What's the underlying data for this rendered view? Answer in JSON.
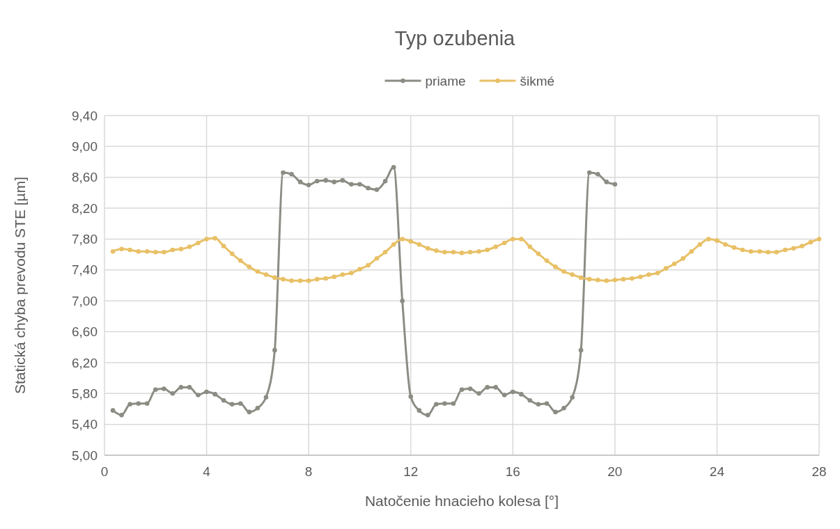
{
  "chart_data": {
    "type": "line",
    "title": "Typ ozubenia",
    "xlabel": "Natočenie hnacieho kolesa [°]",
    "ylabel": "Statická chyba prevodu STE [µm]",
    "xlim": [
      0,
      28
    ],
    "xticks": [
      0,
      4,
      8,
      12,
      16,
      20,
      24,
      28
    ],
    "ylim": [
      5,
      9.4
    ],
    "yticks": [
      {
        "value": 5,
        "label": "5,00"
      },
      {
        "value": 5.4,
        "label": "5,40"
      },
      {
        "value": 5.8,
        "label": "5,80"
      },
      {
        "value": 6.2,
        "label": "6,20"
      },
      {
        "value": 6.6,
        "label": "6,60"
      },
      {
        "value": 7,
        "label": "7,00"
      },
      {
        "value": 7.4,
        "label": "7,40"
      },
      {
        "value": 7.8,
        "label": "7,80"
      },
      {
        "value": 8.2,
        "label": "8,20"
      },
      {
        "value": 8.6,
        "label": "8,60"
      },
      {
        "value": 9,
        "label": "9,00"
      },
      {
        "value": 9.4,
        "label": "9,40"
      }
    ],
    "grid": true,
    "legend": "top",
    "marker": "circle",
    "line_style": "solid",
    "series": [
      {
        "name": "priame",
        "color": "#8c8c84",
        "x": [
          0.33,
          0.67,
          1,
          1.33,
          1.67,
          2,
          2.33,
          2.67,
          3,
          3.33,
          3.67,
          4,
          4.33,
          4.67,
          5,
          5.33,
          5.67,
          6,
          6.33,
          6.67,
          7,
          7.33,
          7.67,
          8,
          8.33,
          8.67,
          9,
          9.33,
          9.67,
          10,
          10.33,
          10.67,
          11,
          11.33,
          11.67,
          12,
          12.33,
          12.67,
          13,
          13.33,
          13.67,
          14,
          14.33,
          14.67,
          15,
          15.33,
          15.67,
          16,
          16.33,
          16.67,
          17,
          17.33,
          17.67,
          18,
          18.33,
          18.67,
          19,
          19.33,
          19.67,
          20
        ],
        "values": [
          5.58,
          5.52,
          5.66,
          5.67,
          5.67,
          5.85,
          5.86,
          5.8,
          5.88,
          5.88,
          5.78,
          5.82,
          5.79,
          5.71,
          5.66,
          5.67,
          5.56,
          5.61,
          5.75,
          6.36,
          8.66,
          8.64,
          8.54,
          8.5,
          8.55,
          8.56,
          8.54,
          8.56,
          8.51,
          8.51,
          8.46,
          8.44,
          8.55,
          8.73,
          7,
          5.76,
          5.58,
          5.52,
          5.66,
          5.67,
          5.67,
          5.85,
          5.86,
          5.8,
          5.88,
          5.88,
          5.78,
          5.82,
          5.79,
          5.71,
          5.66,
          5.67,
          5.56,
          5.61,
          5.75,
          6.36,
          8.66,
          8.64,
          8.54,
          8.51
        ]
      },
      {
        "name": "šikmé",
        "color": "#e8c066",
        "x": [
          0.33,
          0.67,
          1,
          1.33,
          1.67,
          2,
          2.33,
          2.67,
          3,
          3.33,
          3.67,
          4,
          4.33,
          4.67,
          5,
          5.33,
          5.67,
          6,
          6.33,
          6.67,
          7,
          7.33,
          7.67,
          8,
          8.33,
          8.67,
          9,
          9.33,
          9.67,
          10,
          10.33,
          10.67,
          11,
          11.33,
          11.67,
          12,
          12.33,
          12.67,
          13,
          13.33,
          13.67,
          14,
          14.33,
          14.67,
          15,
          15.33,
          15.67,
          16,
          16.33,
          16.67,
          17,
          17.33,
          17.67,
          18,
          18.33,
          18.67,
          19,
          19.33,
          19.67,
          20,
          20.33,
          20.67,
          21,
          21.33,
          21.67,
          22,
          22.33,
          22.67,
          23,
          23.33,
          23.67,
          24,
          24.33,
          24.67,
          25,
          25.33,
          25.67,
          26,
          26.33,
          26.67,
          27,
          27.33,
          27.67,
          28
        ],
        "values": [
          7.64,
          7.67,
          7.66,
          7.64,
          7.64,
          7.63,
          7.63,
          7.66,
          7.67,
          7.7,
          7.75,
          7.8,
          7.81,
          7.71,
          7.61,
          7.52,
          7.44,
          7.38,
          7.34,
          7.3,
          7.28,
          7.26,
          7.26,
          7.26,
          7.28,
          7.29,
          7.31,
          7.34,
          7.36,
          7.41,
          7.46,
          7.55,
          7.63,
          7.73,
          7.8,
          7.77,
          7.73,
          7.68,
          7.65,
          7.63,
          7.63,
          7.62,
          7.63,
          7.64,
          7.66,
          7.7,
          7.75,
          7.8,
          7.8,
          7.7,
          7.61,
          7.52,
          7.44,
          7.38,
          7.34,
          7.3,
          7.28,
          7.27,
          7.26,
          7.27,
          7.28,
          7.29,
          7.31,
          7.34,
          7.36,
          7.42,
          7.48,
          7.55,
          7.64,
          7.73,
          7.8,
          7.78,
          7.73,
          7.69,
          7.66,
          7.64,
          7.64,
          7.63,
          7.63,
          7.66,
          7.68,
          7.71,
          7.76,
          7.8
        ]
      }
    ]
  }
}
